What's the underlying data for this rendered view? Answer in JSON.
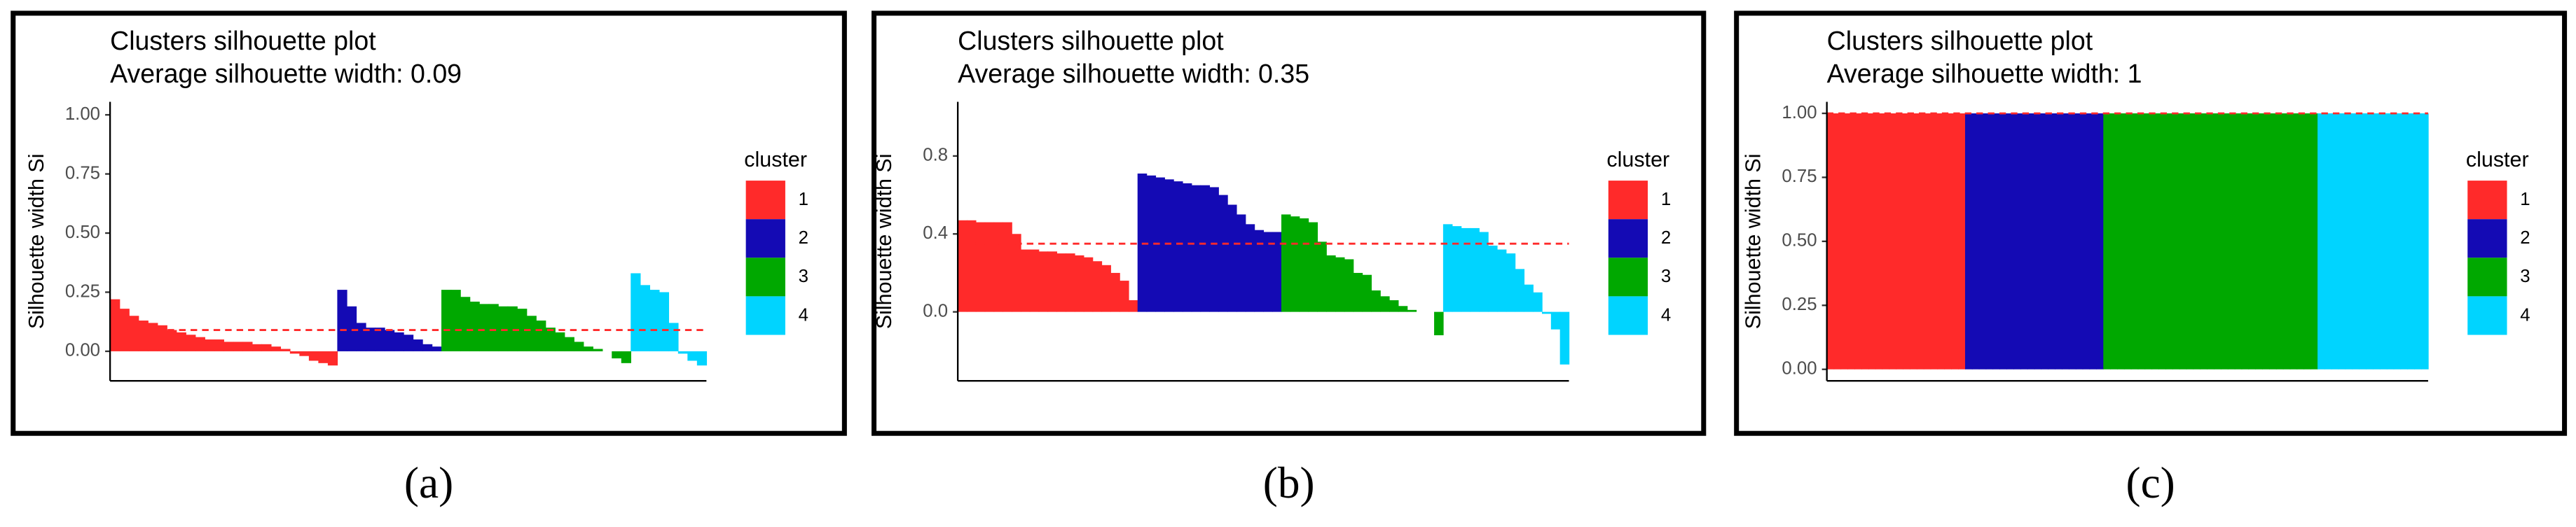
{
  "chart_data": [
    {
      "type": "bar",
      "caption": "(a)",
      "title": "Clusters silhouette plot",
      "subtitle": " Average silhouette width: 0.09",
      "ylabel": "Silhouette width Si",
      "legend_title": "cluster",
      "hline": 0.09,
      "hline_color": "#ff2a2a",
      "ylim": [
        -0.125,
        1.055
      ],
      "yticks": [
        {
          "value": 0,
          "label": "0.00"
        },
        0.25,
        {
          "value": 0.5,
          "label": "0.50"
        },
        0.75,
        {
          "value": 1,
          "label": "1.00"
        }
      ],
      "series": [
        {
          "name": "1",
          "color": "#ff2a2a",
          "values": [
            0.22,
            0.18,
            0.15,
            0.13,
            0.12,
            0.11,
            0.09,
            0.08,
            0.07,
            0.06,
            0.05,
            0.05,
            0.04,
            0.04,
            0.04,
            0.03,
            0.03,
            0.02,
            0.01,
            -0.01,
            -0.02,
            -0.04,
            -0.05,
            -0.06
          ]
        },
        {
          "name": "2",
          "color": "#140ab4",
          "values": [
            0.26,
            0.19,
            0.12,
            0.1,
            0.1,
            0.09,
            0.08,
            0.07,
            0.05,
            0.03,
            0.02
          ]
        },
        {
          "name": "3",
          "color": "#00a800",
          "values": [
            0.26,
            0.26,
            0.23,
            0.21,
            0.2,
            0.2,
            0.19,
            0.19,
            0.18,
            0.15,
            0.13,
            0.1,
            0.08,
            0.06,
            0.04,
            0.02,
            0.01,
            0,
            -0.03,
            -0.05
          ]
        },
        {
          "name": "4",
          "color": "#00d4ff",
          "values": [
            0.33,
            0.28,
            0.26,
            0.25,
            0.12,
            -0.01,
            -0.04,
            -0.06
          ]
        }
      ]
    },
    {
      "type": "bar",
      "caption": "(b)",
      "title": "Clusters silhouette plot",
      "subtitle": " Average silhouette width: 0.35",
      "ylabel": "Silhouette width Si",
      "legend_title": "cluster",
      "hline": 0.35,
      "hline_color": "#ff2a2a",
      "ylim": [
        -0.354,
        1.078
      ],
      "yticks": [
        {
          "value": 0,
          "label": "0.0"
        },
        0.4,
        0.8
      ],
      "series": [
        {
          "name": "1",
          "color": "#ff2a2a",
          "values": [
            0.47,
            0.47,
            0.46,
            0.46,
            0.46,
            0.46,
            0.4,
            0.32,
            0.32,
            0.31,
            0.31,
            0.3,
            0.3,
            0.29,
            0.28,
            0.26,
            0.24,
            0.2,
            0.16,
            0.06
          ]
        },
        {
          "name": "2",
          "color": "#140ab4",
          "values": [
            0.71,
            0.7,
            0.69,
            0.68,
            0.67,
            0.66,
            0.65,
            0.65,
            0.64,
            0.6,
            0.55,
            0.5,
            0.45,
            0.42,
            0.41,
            0.41
          ]
        },
        {
          "name": "3",
          "color": "#00a800",
          "values": [
            0.5,
            0.49,
            0.48,
            0.46,
            0.36,
            0.29,
            0.28,
            0.27,
            0.2,
            0.19,
            0.11,
            0.08,
            0.06,
            0.03,
            0.01,
            0,
            0,
            -0.12
          ]
        },
        {
          "name": "4",
          "color": "#00d4ff",
          "values": [
            0.45,
            0.44,
            0.43,
            0.43,
            0.41,
            0.34,
            0.32,
            0.3,
            0.22,
            0.14,
            0.1,
            -0.01,
            -0.09,
            -0.27
          ]
        }
      ]
    },
    {
      "type": "bar",
      "caption": "(c)",
      "title": "Clusters silhouette plot",
      "subtitle": " Average silhouette width: 1",
      "ylabel": "Silhouette width Si",
      "legend_title": "cluster",
      "hline": 1,
      "hline_color": "#ff2a2a",
      "ylim": [
        -0.045,
        1.045
      ],
      "yticks": [
        {
          "value": 0,
          "label": "0.00"
        },
        0.25,
        {
          "value": 0.5,
          "label": "0.50"
        },
        0.75,
        {
          "value": 1,
          "label": "1.00"
        }
      ],
      "series": [
        {
          "name": "1",
          "color": "#ff2a2a",
          "values": [
            1,
            1,
            1,
            1,
            1,
            1,
            1,
            1,
            1,
            1,
            1,
            1,
            1,
            1,
            1,
            1,
            1,
            1,
            1,
            1
          ]
        },
        {
          "name": "2",
          "color": "#140ab4",
          "values": [
            1,
            1,
            1,
            1,
            1,
            1,
            1,
            1,
            1,
            1,
            1,
            1,
            1,
            1,
            1,
            1,
            1,
            1,
            1,
            1
          ]
        },
        {
          "name": "3",
          "color": "#00a800",
          "values": [
            1,
            1,
            1,
            1,
            1,
            1,
            1,
            1,
            1,
            1,
            1,
            1,
            1,
            1,
            1,
            1,
            1,
            1,
            1,
            1,
            1,
            1,
            1,
            1,
            1,
            1,
            1,
            1,
            1,
            1,
            1
          ]
        },
        {
          "name": "4",
          "color": "#00d4ff",
          "values": [
            1,
            1,
            1,
            1,
            1,
            1,
            1,
            1,
            1,
            1,
            1,
            1,
            1,
            1,
            1,
            1
          ]
        }
      ]
    }
  ]
}
